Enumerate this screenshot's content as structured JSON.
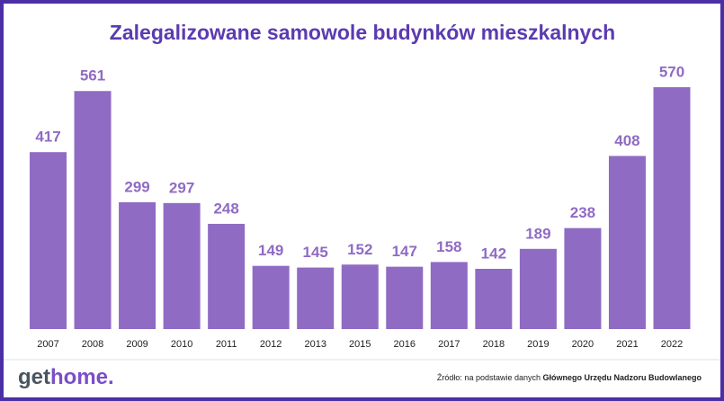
{
  "chart_data": {
    "type": "bar",
    "title": "Zalegalizowane samowole budynków mieszkalnych",
    "categories": [
      "2007",
      "2008",
      "2009",
      "2010",
      "2011",
      "2012",
      "2013",
      "2015",
      "2016",
      "2017",
      "2018",
      "2019",
      "2020",
      "2021",
      "2022"
    ],
    "values": [
      417,
      561,
      299,
      297,
      248,
      149,
      145,
      152,
      147,
      158,
      142,
      189,
      238,
      408,
      570
    ],
    "color": "#8f6bc4"
  },
  "footer": {
    "logo": [
      "get",
      "home."
    ],
    "source": [
      "Źródło: na podstawie danych ",
      "Głównego Urzędu Nadzoru Budowlanego"
    ]
  }
}
